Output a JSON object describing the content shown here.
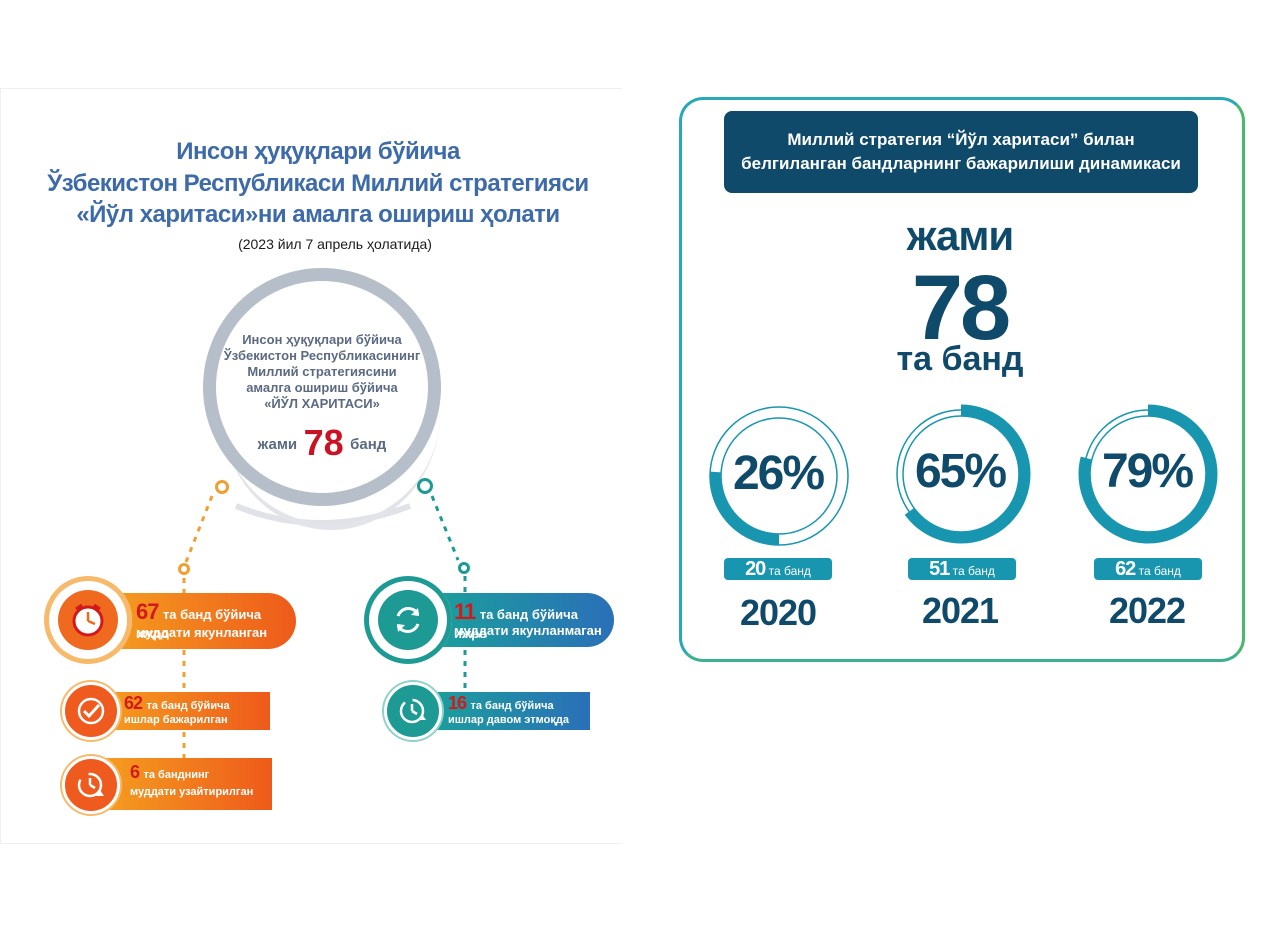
{
  "left": {
    "title_lines": [
      "Инсон ҳуқуқлари бўйича",
      "Ўзбекистон Республикаси Миллий стратегияси",
      "«Йўл харитаси»ни амалга ошириш ҳолати"
    ],
    "subtitle": "(2023 йил 7 апрель ҳолатида)",
    "ring": {
      "lines": [
        "Инсон ҳуқуқлари бўйича",
        "Ўзбекистон Республикасининг",
        "Миллий стратегиясини",
        "амалга ошириш бўйича",
        "«ЙЎЛ ХАРИТАСИ»"
      ],
      "total_prefix": "жами",
      "total_value": "78",
      "total_suffix": "банд"
    },
    "items": [
      {
        "num": "67",
        "text1": "та банд бўйича ижро",
        "text2": "муддати якунланган",
        "icon": "clock-alarm-icon",
        "color": "#f07a1e"
      },
      {
        "num": "62",
        "text1": "та банд бўйича",
        "text2": "ишлар бажарилган",
        "icon": "check-clock-icon",
        "color": "#ef6a1f"
      },
      {
        "num": "6",
        "text1": "та банднинг",
        "text2": "муддати узайтирилган",
        "icon": "clock-extend-icon",
        "color": "#ef6a1f"
      },
      {
        "num": "11",
        "text1": "та банд бўйича ижро",
        "text2": "муддати якунланмаган",
        "icon": "refresh-icon",
        "color": "#1d9a94"
      },
      {
        "num": "16",
        "text1": "та банд бўйича",
        "text2": "ишлар давом этмоқда",
        "icon": "clock-progress-icon",
        "color": "#1d9a94"
      }
    ]
  },
  "right": {
    "header_lines": [
      "Миллий стратегия “Йўл харитаси” билан",
      "белгиланган бандларнинг бажарилиши динамикаси"
    ],
    "total_word": "жами",
    "total_value": "78",
    "total_unit": "та банд",
    "years": [
      {
        "year": "2020",
        "percent": 26,
        "percent_label": "26%",
        "count": "20",
        "unit": "та банд"
      },
      {
        "year": "2021",
        "percent": 65,
        "percent_label": "65%",
        "count": "51",
        "unit": "та банд"
      },
      {
        "year": "2022",
        "percent": 79,
        "percent_label": "79%",
        "count": "62",
        "unit": "та банд"
      }
    ],
    "accent_color": "#1896b0",
    "dark_color": "#0f4a6b"
  }
}
